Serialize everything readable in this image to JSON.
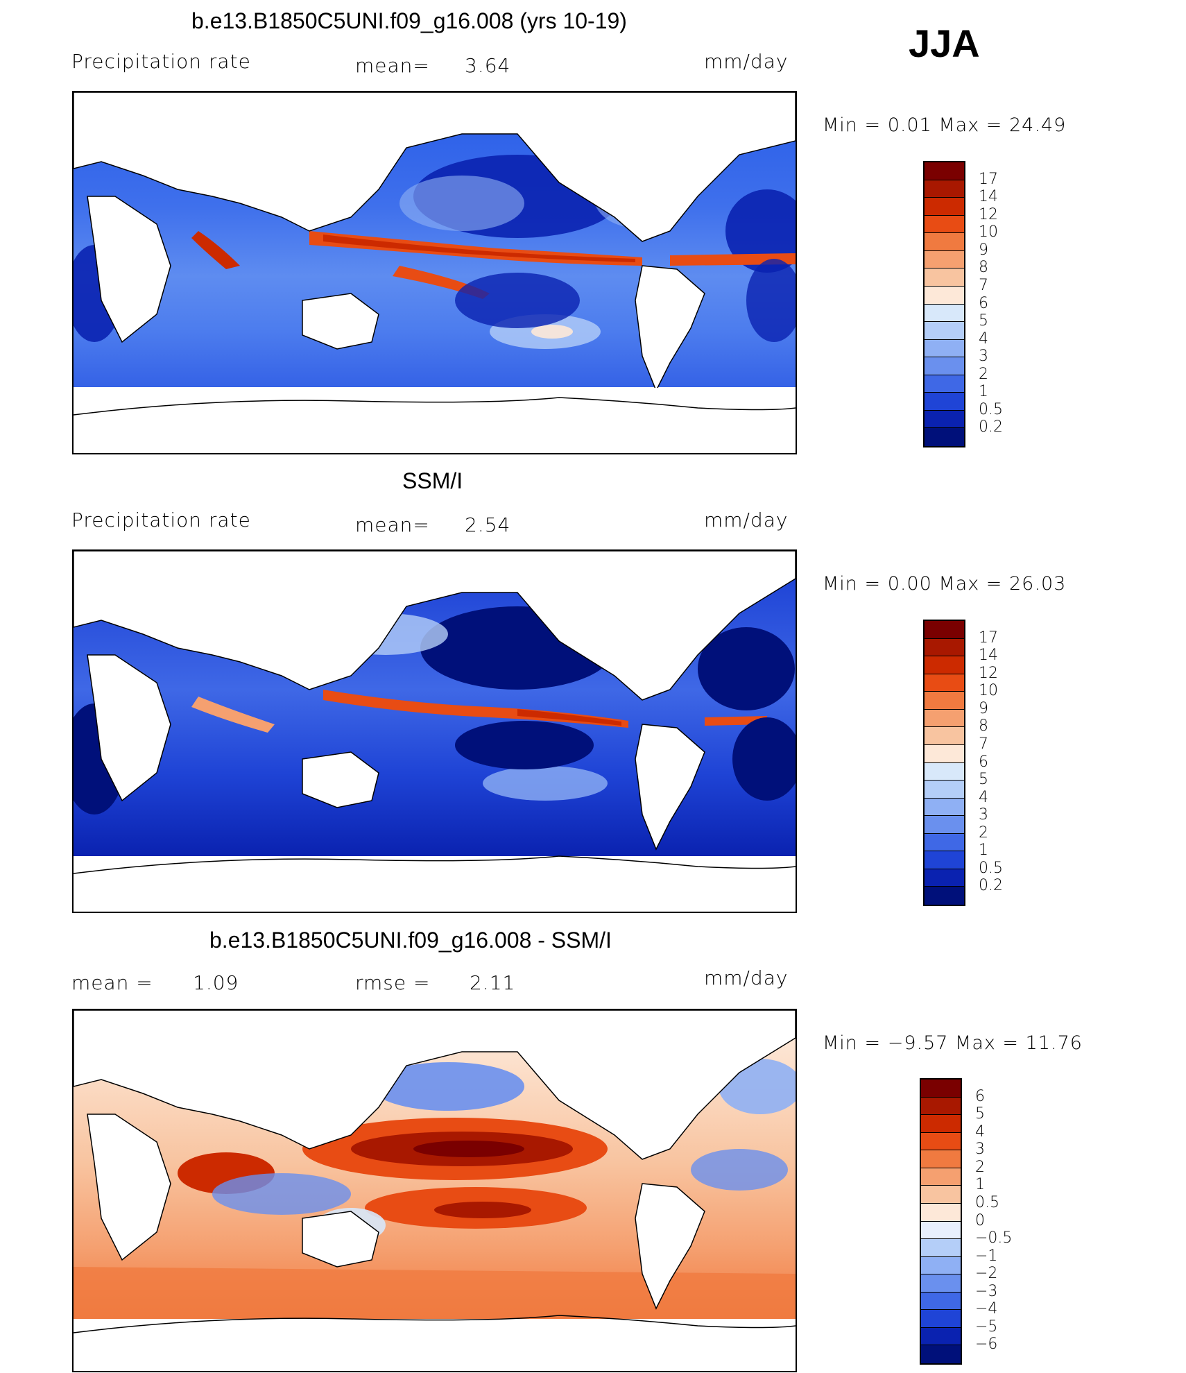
{
  "season": "JJA",
  "units": "mm/day",
  "panel1": {
    "title": "b.e13.B1850C5UNI.f09_g16.008 (yrs 10-19)",
    "variable": "Precipitation rate",
    "mean_label": "mean=",
    "mean_value": "3.64",
    "units": "mm/day",
    "minmax": "Min =     0.01  Max =    24.49"
  },
  "panel2": {
    "title": "SSM/I",
    "variable": "Precipitation rate",
    "mean_label": "mean=",
    "mean_value": "2.54",
    "units": "mm/day",
    "minmax": "Min =     0.00  Max =    26.03"
  },
  "panel3": {
    "title": "b.e13.B1850C5UNI.f09_g16.008 - SSM/I",
    "mean_label": "mean =",
    "mean_value": "1.09",
    "rmse_label": "rmse =",
    "rmse_value": "2.11",
    "units": "mm/day",
    "minmax": "Min =   −9.57  Max =    11.76"
  },
  "colorbar_precip": {
    "labels": [
      "17",
      "14",
      "12",
      "10",
      "9",
      "8",
      "7",
      "6",
      "5",
      "4",
      "3",
      "2",
      "1",
      "0.5",
      "0.2"
    ],
    "colors": [
      "#7a0000",
      "#a81800",
      "#cc2a00",
      "#e84c14",
      "#f07a40",
      "#f5a070",
      "#f8c4a0",
      "#fde8d8",
      "#d8e8fa",
      "#b4cef8",
      "#8fb0f4",
      "#6a90ee",
      "#3f68e6",
      "#1f44d6",
      "#0a22b0",
      "#00107a"
    ]
  },
  "colorbar_diff": {
    "labels": [
      "6",
      "5",
      "4",
      "3",
      "2",
      "1",
      "0.5",
      "0",
      "−0.5",
      "−1",
      "−2",
      "−3",
      "−4",
      "−5",
      "−6"
    ],
    "colors": [
      "#7a0000",
      "#a81800",
      "#cc2a00",
      "#e84c14",
      "#f07a40",
      "#f5a070",
      "#f8c4a0",
      "#fde8d8",
      "#e8f0fc",
      "#b4cef8",
      "#8fb0f4",
      "#6a90ee",
      "#3f68e6",
      "#1f44d6",
      "#0a22b0",
      "#00107a"
    ]
  }
}
